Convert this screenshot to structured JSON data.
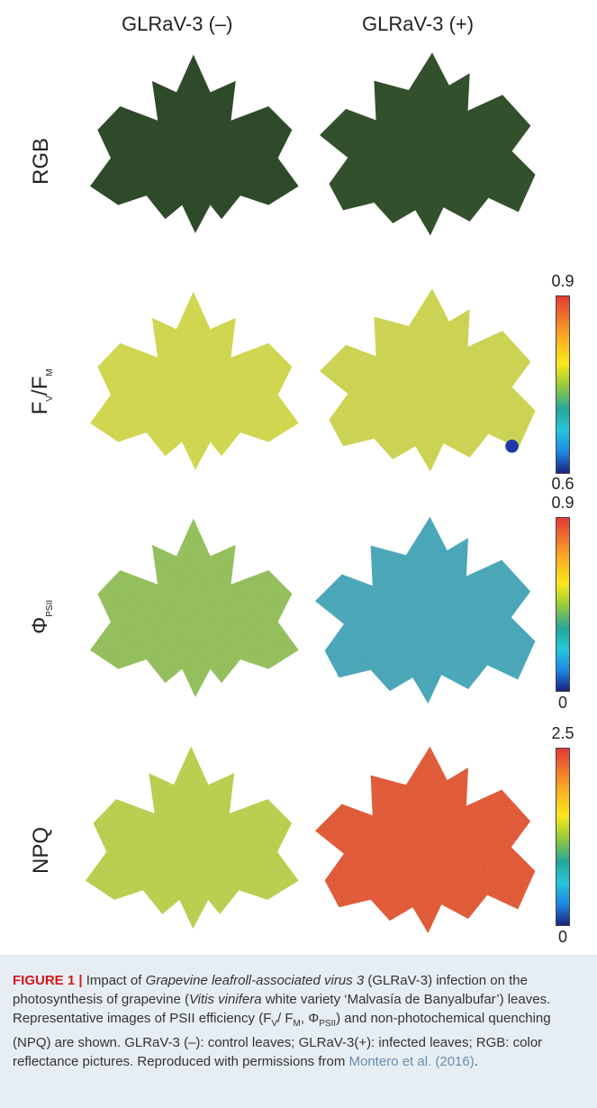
{
  "columns": [
    "GLRaV-3 (–)",
    "GLRaV-3 (+)"
  ],
  "rows": {
    "rgb": "RGB",
    "fvfm": {
      "base": "F",
      "sub1": "V",
      "mid": "/F",
      "sub2": "M"
    },
    "phi": {
      "base": "Φ",
      "sub": "PSII"
    },
    "npq": "NPQ"
  },
  "colorbars": {
    "fvfm": {
      "max": "0.9",
      "min": "0.6"
    },
    "phi": {
      "max": "0.9",
      "min": "0"
    },
    "npq": {
      "max": "2.5",
      "min": "0"
    }
  },
  "caption": {
    "figure_label": "FIGURE 1 |",
    "t1": " Impact of ",
    "virus_italic": "Grapevine leafroll-associated virus 3",
    "t2": " (GLRaV-3) infection on the photosynthesis of grapevine (",
    "species_italic": "Vitis vinifera",
    "t3": " white variety ‘Malvasía de Banyalbufar’) leaves. Representative images of PSII efficiency (F",
    "t3_sub1": "V",
    "t3b": "/ F",
    "t3_sub2": "M",
    "t3c": ", Φ",
    "t3_sub3": "PSII",
    "t4": ") and non-photochemical quenching (NPQ) are shown. GLRaV-3 (–): control leaves; GLRaV-3(+): infected leaves; RGB: color reflectance pictures. Reproduced with permissions from ",
    "ref_link": "Montero et al. (2016)",
    "t5": "."
  },
  "colors": {
    "leaf_rgb": "#2f4a2a",
    "fvfm_fill": "#d4dc3a",
    "phi_left_fill": "#8cc04a",
    "phi_right_fill": "#33a3b8",
    "npq_left_fill": "#b9d23a",
    "npq_right_fill": "#e8481f",
    "caption_bg": "#e6eef4",
    "figure_label": "#d11a1a",
    "link": "#6a8caa"
  }
}
